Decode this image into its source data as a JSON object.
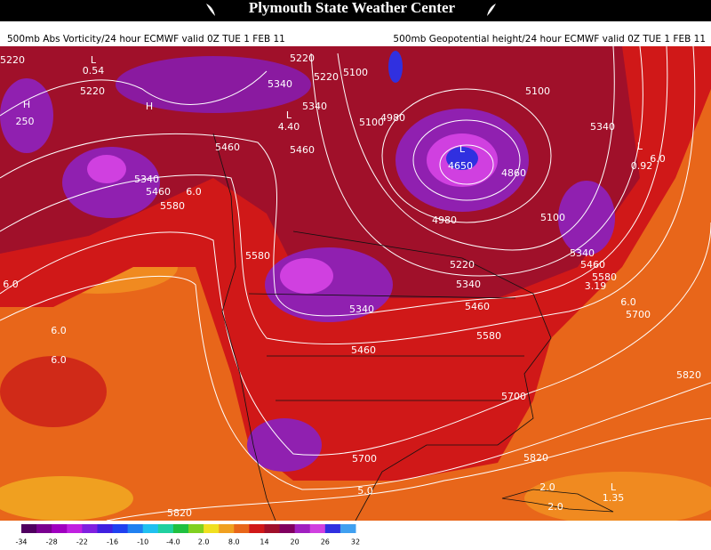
{
  "header": {
    "title": "Plymouth State Weather Center"
  },
  "subtitle": {
    "left": "500mb Abs Vorticity/24 hour ECMWF valid 0Z TUE 1 FEB 11",
    "right": "500mb Geopotential height/24 hour ECMWF valid 0Z TUE 1 FEB 11"
  },
  "map": {
    "contour_labels": [
      "5220",
      "0.54",
      "5220",
      "250",
      "5340",
      "5460",
      "5580",
      "6.0",
      "5460",
      "5340",
      "5220",
      "5340",
      "5460",
      "5220",
      "5100",
      "5100",
      "4980",
      "4650",
      "4860",
      "4980",
      "5100",
      "5220",
      "5340",
      "5460",
      "5340",
      "5460",
      "5580",
      "5100",
      "5340",
      "0.92",
      "6.0",
      "5580",
      "5340",
      "5460",
      "5580",
      "5700",
      "5700",
      "5820",
      "5700",
      "5820",
      "5.0",
      "5820",
      "2.0",
      "2.0",
      "1.35",
      "6.0",
      "6.0",
      "6.0",
      "3.19",
      "6.0",
      "4.40"
    ],
    "pressure_centers": [
      "L",
      "H",
      "L",
      "L",
      "L",
      "L",
      "H"
    ]
  },
  "colorbar": {
    "ticks": [
      "-34",
      "-28",
      "-22",
      "-16",
      "-10",
      "-4.0",
      "2.0",
      "8.0",
      "14",
      "20",
      "26",
      "32"
    ]
  }
}
